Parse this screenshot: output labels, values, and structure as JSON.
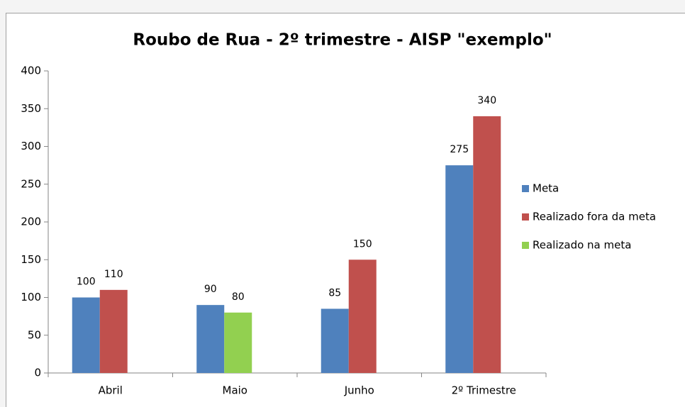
{
  "chart_data": {
    "type": "bar",
    "title": "Roubo de Rua - 2º trimestre - AISP \"exemplo\"",
    "categories": [
      "Abril",
      "Maio",
      "Junho",
      "2º Trimestre"
    ],
    "series": [
      {
        "name": "Meta",
        "color": "#4f81bd",
        "values": [
          100,
          90,
          85,
          275
        ]
      },
      {
        "name": "Realizado fora da meta",
        "color": "#c0504d",
        "values": [
          110,
          null,
          150,
          340
        ]
      },
      {
        "name": "Realizado na meta",
        "color": "#92d050",
        "values": [
          null,
          80,
          null,
          null
        ]
      }
    ],
    "ylim": [
      0,
      400
    ],
    "yticks": [
      0,
      50,
      100,
      150,
      200,
      250,
      300,
      350,
      400
    ],
    "grid": false,
    "legend": "right"
  }
}
